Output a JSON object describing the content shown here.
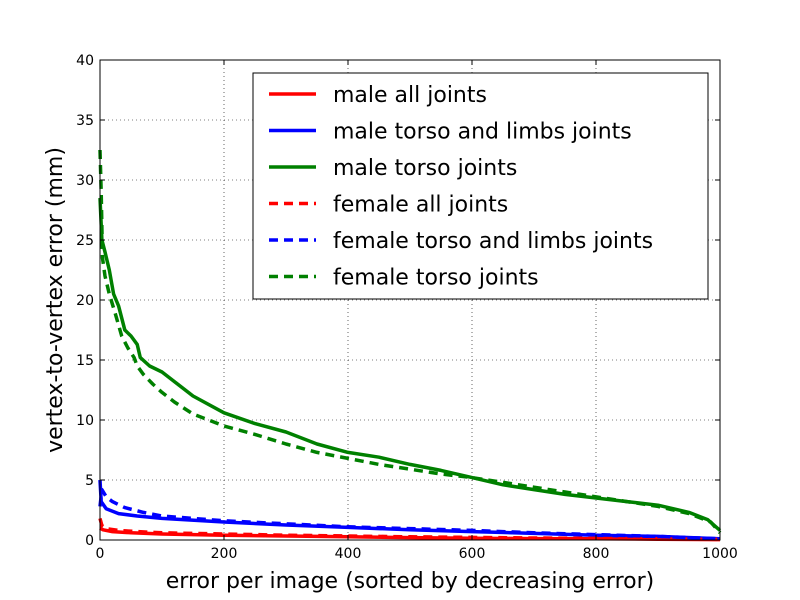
{
  "chart_data": {
    "type": "line",
    "xlabel": "error per image (sorted by decreasing error)",
    "ylabel": "vertex-to-vertex error (mm)",
    "xlim": [
      0,
      1000
    ],
    "ylim": [
      0,
      40
    ],
    "xticks": [
      0,
      200,
      400,
      600,
      800,
      1000
    ],
    "yticks": [
      0,
      5,
      10,
      15,
      20,
      25,
      30,
      35,
      40
    ],
    "grid": true,
    "legend_position": "top-right",
    "series": [
      {
        "name": "male all joints",
        "color": "#ff0000",
        "dash": "solid",
        "points": [
          [
            0,
            1.0
          ],
          [
            5,
            0.85
          ],
          [
            20,
            0.7
          ],
          [
            50,
            0.6
          ],
          [
            100,
            0.5
          ],
          [
            200,
            0.4
          ],
          [
            300,
            0.33
          ],
          [
            400,
            0.27
          ],
          [
            500,
            0.2
          ],
          [
            600,
            0.15
          ],
          [
            700,
            0.12
          ],
          [
            800,
            0.1
          ],
          [
            900,
            0.07
          ],
          [
            1000,
            0.03
          ]
        ]
      },
      {
        "name": "male torso and limbs joints",
        "color": "#0000ff",
        "dash": "solid",
        "points": [
          [
            0,
            5.0
          ],
          [
            2,
            3.2
          ],
          [
            10,
            2.6
          ],
          [
            30,
            2.2
          ],
          [
            60,
            2.0
          ],
          [
            100,
            1.8
          ],
          [
            200,
            1.5
          ],
          [
            300,
            1.25
          ],
          [
            400,
            1.05
          ],
          [
            500,
            0.85
          ],
          [
            600,
            0.7
          ],
          [
            700,
            0.55
          ],
          [
            800,
            0.4
          ],
          [
            900,
            0.3
          ],
          [
            1000,
            0.1
          ]
        ]
      },
      {
        "name": "male torso joints",
        "color": "#008000",
        "dash": "solid",
        "points": [
          [
            0,
            28.5
          ],
          [
            3,
            25.0
          ],
          [
            8,
            24.0
          ],
          [
            15,
            22.5
          ],
          [
            22,
            20.5
          ],
          [
            30,
            19.5
          ],
          [
            40,
            17.5
          ],
          [
            50,
            17.0
          ],
          [
            60,
            16.3
          ],
          [
            65,
            15.2
          ],
          [
            80,
            14.5
          ],
          [
            100,
            14.0
          ],
          [
            120,
            13.2
          ],
          [
            150,
            12.0
          ],
          [
            200,
            10.6
          ],
          [
            250,
            9.7
          ],
          [
            300,
            9.0
          ],
          [
            350,
            8.0
          ],
          [
            400,
            7.3
          ],
          [
            450,
            6.9
          ],
          [
            500,
            6.3
          ],
          [
            550,
            5.8
          ],
          [
            600,
            5.2
          ],
          [
            650,
            4.6
          ],
          [
            700,
            4.2
          ],
          [
            750,
            3.8
          ],
          [
            800,
            3.5
          ],
          [
            850,
            3.2
          ],
          [
            900,
            2.9
          ],
          [
            950,
            2.3
          ],
          [
            980,
            1.7
          ],
          [
            1000,
            0.8
          ]
        ]
      },
      {
        "name": "female all joints",
        "color": "#ff0000",
        "dash": "dashed",
        "points": [
          [
            0,
            1.8
          ],
          [
            3,
            1.2
          ],
          [
            10,
            0.95
          ],
          [
            30,
            0.8
          ],
          [
            60,
            0.7
          ],
          [
            100,
            0.6
          ],
          [
            200,
            0.5
          ],
          [
            300,
            0.4
          ],
          [
            400,
            0.33
          ],
          [
            500,
            0.27
          ],
          [
            600,
            0.22
          ],
          [
            700,
            0.17
          ],
          [
            800,
            0.13
          ],
          [
            900,
            0.1
          ],
          [
            1000,
            0.05
          ]
        ]
      },
      {
        "name": "female torso and limbs joints",
        "color": "#0000ff",
        "dash": "dashed",
        "points": [
          [
            0,
            2.8
          ],
          [
            3,
            4.2
          ],
          [
            10,
            3.6
          ],
          [
            20,
            3.2
          ],
          [
            40,
            2.7
          ],
          [
            70,
            2.3
          ],
          [
            100,
            2.0
          ],
          [
            200,
            1.6
          ],
          [
            300,
            1.35
          ],
          [
            400,
            1.1
          ],
          [
            500,
            0.95
          ],
          [
            600,
            0.8
          ],
          [
            700,
            0.6
          ],
          [
            800,
            0.45
          ],
          [
            900,
            0.3
          ],
          [
            1000,
            0.1
          ]
        ]
      },
      {
        "name": "female torso joints",
        "color": "#008000",
        "dash": "dashed",
        "points": [
          [
            0,
            32.5
          ],
          [
            2,
            29.0
          ],
          [
            4,
            23.5
          ],
          [
            8,
            22.0
          ],
          [
            15,
            20.5
          ],
          [
            25,
            18.8
          ],
          [
            35,
            17.0
          ],
          [
            45,
            16.0
          ],
          [
            55,
            15.2
          ],
          [
            60,
            14.5
          ],
          [
            70,
            13.8
          ],
          [
            85,
            13.0
          ],
          [
            100,
            12.3
          ],
          [
            120,
            11.5
          ],
          [
            150,
            10.5
          ],
          [
            200,
            9.5
          ],
          [
            250,
            8.8
          ],
          [
            300,
            8.0
          ],
          [
            350,
            7.3
          ],
          [
            400,
            6.8
          ],
          [
            450,
            6.3
          ],
          [
            500,
            5.9
          ],
          [
            550,
            5.5
          ],
          [
            600,
            5.2
          ],
          [
            650,
            4.8
          ],
          [
            700,
            4.4
          ],
          [
            750,
            4.0
          ],
          [
            800,
            3.6
          ],
          [
            850,
            3.2
          ],
          [
            900,
            2.8
          ],
          [
            950,
            2.2
          ],
          [
            985,
            1.5
          ],
          [
            1000,
            0.6
          ]
        ]
      }
    ]
  }
}
